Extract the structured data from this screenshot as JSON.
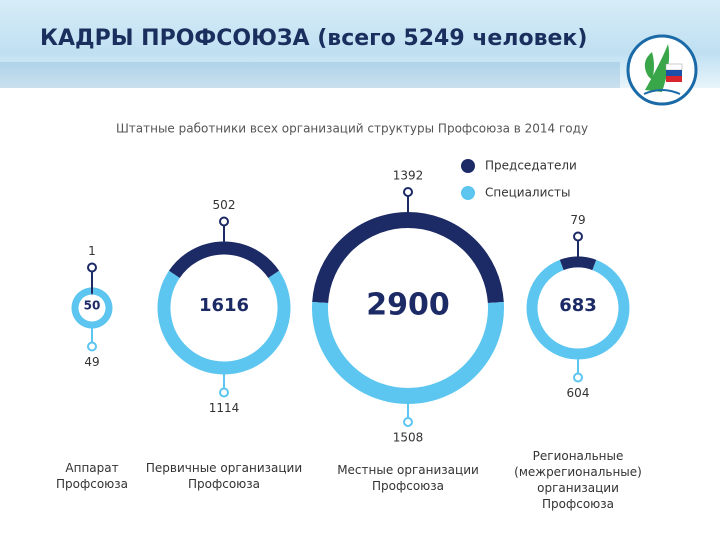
{
  "header": {
    "title": "КАДРЫ ПРОФСОЮЗА (всего 5249 человек)"
  },
  "chart_data": {
    "type": "donut",
    "title": "Штатные работники всех организаций структуры Профсоюза в 2014 году",
    "categories": [
      "Аппарат Профсоюза",
      "Первичные организации Профсоюза",
      "Местные организации Профсоюза",
      "Региональные (межрегиональные) организации Профсоюза"
    ],
    "totals": [
      50,
      1616,
      2900,
      683
    ],
    "series": [
      {
        "name": "Председатели",
        "color": "#1c2a66",
        "values": [
          1,
          502,
          1392,
          79
        ]
      },
      {
        "name": "Специалисты",
        "color": "#5cc6f0",
        "values": [
          49,
          1114,
          1508,
          604
        ]
      }
    ]
  }
}
